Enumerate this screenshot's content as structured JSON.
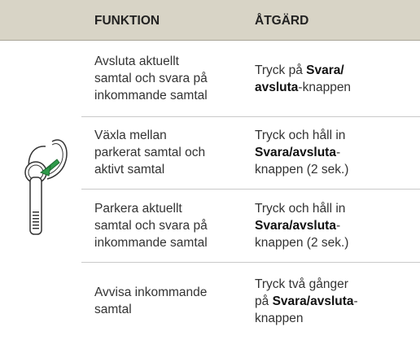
{
  "table": {
    "header": [
      "FUNKTION",
      "ÅTGÄRD"
    ],
    "rows": [
      {
        "function": "Avsluta aktuellt\nsamtal och svara på\ninkommande samtal",
        "action": [
          {
            "text": "Tryck på ",
            "bold": false
          },
          {
            "text": "Svara/\navsluta",
            "bold": true
          },
          {
            "text": "-knappen",
            "bold": false
          }
        ]
      },
      {
        "function": "Växla mellan\nparkerat samtal och\naktivt samtal",
        "action": [
          {
            "text": "Tryck och håll in\n",
            "bold": false
          },
          {
            "text": "Svara/avsluta",
            "bold": true
          },
          {
            "text": "-\nknappen (2 sek.)",
            "bold": false
          }
        ]
      },
      {
        "function": "Parkera aktuellt\nsamtal och svara på\ninkommande samtal",
        "action": [
          {
            "text": "Tryck och håll in\n",
            "bold": false
          },
          {
            "text": "Svara/avsluta",
            "bold": true
          },
          {
            "text": "-\nknappen (2 sek.)",
            "bold": false
          }
        ]
      },
      {
        "function": "Avvisa inkommande\nsamtal",
        "action": [
          {
            "text": "Tryck två gånger\npå ",
            "bold": false
          },
          {
            "text": "Svara/avsluta",
            "bold": true
          },
          {
            "text": "-\nknappen",
            "bold": false
          }
        ]
      }
    ]
  }
}
